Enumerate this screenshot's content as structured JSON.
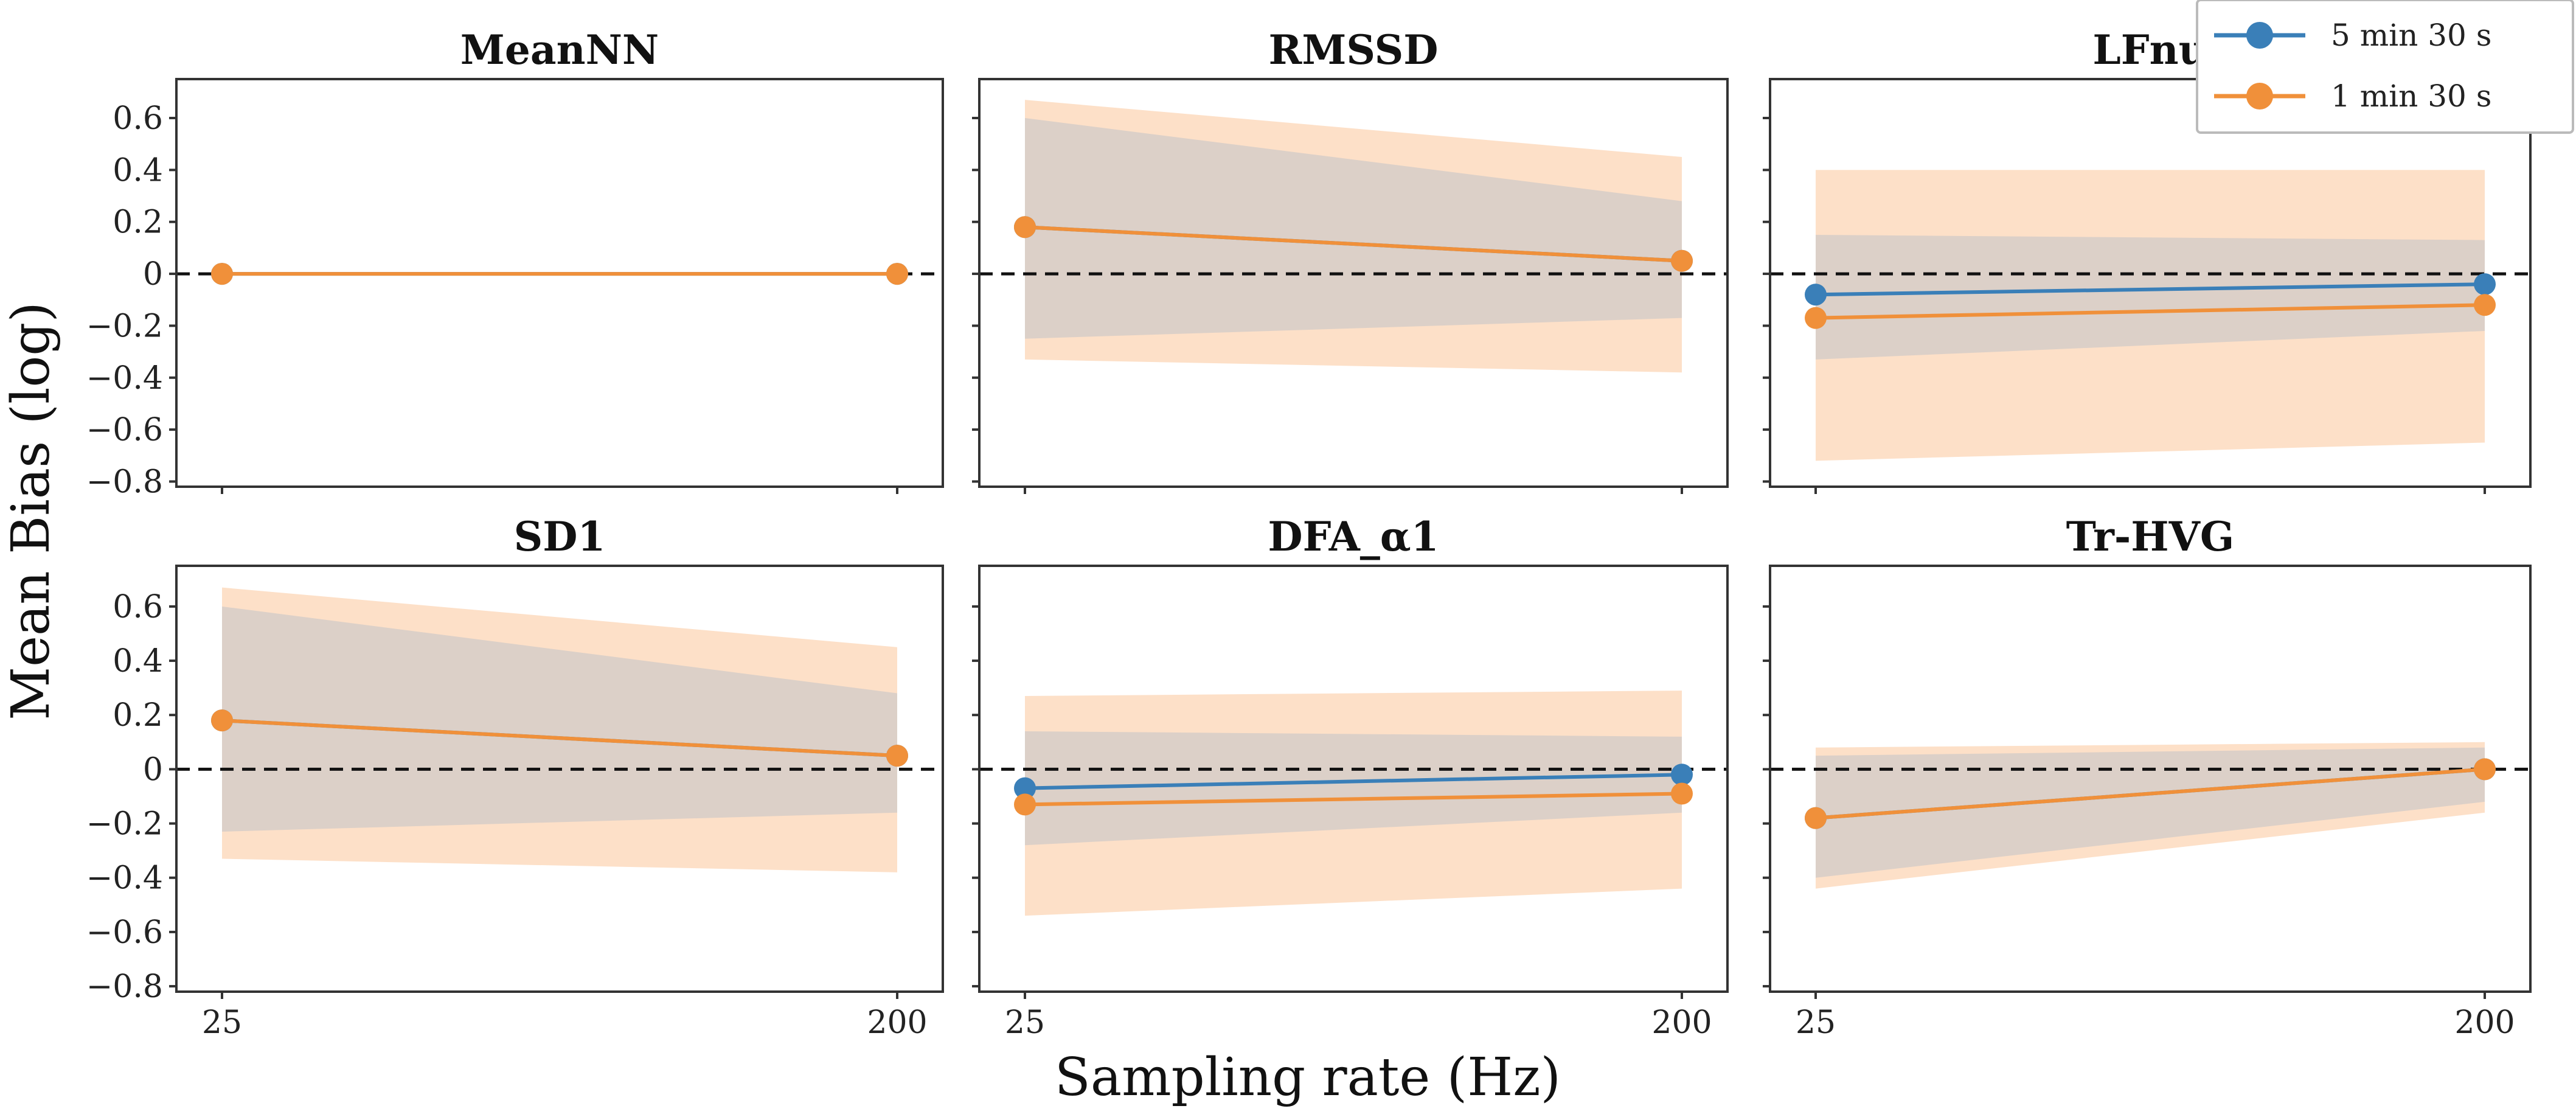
{
  "figure": {
    "xlabel": "Sampling rate (Hz)",
    "ylabel": "Mean Bias (log)",
    "colors": {
      "series_5min": "#3a7fb8",
      "series_1min": "#f0903a",
      "band_1min": "#fde0c8",
      "band_overlap": "#d8cec8",
      "zero_line": "#111111"
    }
  },
  "legend": {
    "entries": [
      "5 min 30 s",
      "1 min 30 s"
    ]
  },
  "chart_data": [
    {
      "type": "line",
      "title": "MeanNN",
      "categories": [
        "25",
        "200"
      ],
      "xlim": [
        25,
        200
      ],
      "yticks": [
        "0.6",
        "0.4",
        "0.2",
        "0",
        "−0.2",
        "−0.4",
        "−0.6",
        "−0.8"
      ],
      "ylim": [
        -0.82,
        0.75
      ],
      "series": [
        {
          "name": "5 min 30 s",
          "values": [
            0.0,
            0.0
          ],
          "band_lower": [
            0.0,
            0.0
          ],
          "band_upper": [
            0.0,
            0.0
          ]
        },
        {
          "name": "1 min 30 s",
          "values": [
            0.0,
            0.0
          ],
          "band_lower": [
            0.0,
            0.0
          ],
          "band_upper": [
            0.0,
            0.0
          ]
        }
      ]
    },
    {
      "type": "line",
      "title": "RMSSD",
      "categories": [
        "25",
        "200"
      ],
      "xlim": [
        25,
        200
      ],
      "yticks": [],
      "ylim": [
        -0.82,
        0.75
      ],
      "series": [
        {
          "name": "5 min 30 s",
          "values": [
            0.18,
            0.05
          ],
          "band_lower": [
            -0.25,
            -0.17
          ],
          "band_upper": [
            0.6,
            0.28
          ]
        },
        {
          "name": "1 min 30 s",
          "values": [
            0.18,
            0.05
          ],
          "band_lower": [
            -0.33,
            -0.38
          ],
          "band_upper": [
            0.67,
            0.45
          ]
        }
      ]
    },
    {
      "type": "line",
      "title": "LFnu",
      "categories": [
        "25",
        "200"
      ],
      "xlim": [
        25,
        200
      ],
      "yticks": [],
      "ylim": [
        -0.82,
        0.75
      ],
      "series": [
        {
          "name": "5 min 30 s",
          "values": [
            -0.08,
            -0.04
          ],
          "band_lower": [
            -0.33,
            -0.22
          ],
          "band_upper": [
            0.15,
            0.13
          ]
        },
        {
          "name": "1 min 30 s",
          "values": [
            -0.17,
            -0.12
          ],
          "band_lower": [
            -0.72,
            -0.65
          ],
          "band_upper": [
            0.4,
            0.4
          ]
        }
      ]
    },
    {
      "type": "line",
      "title": "SD1",
      "categories": [
        "25",
        "200"
      ],
      "xlim": [
        25,
        200
      ],
      "yticks": [
        "0.6",
        "0.4",
        "0.2",
        "0",
        "−0.2",
        "−0.4",
        "−0.6",
        "−0.8"
      ],
      "ylim": [
        -0.82,
        0.75
      ],
      "series": [
        {
          "name": "5 min 30 s",
          "values": [
            0.18,
            0.05
          ],
          "band_lower": [
            -0.23,
            -0.16
          ],
          "band_upper": [
            0.6,
            0.28
          ]
        },
        {
          "name": "1 min 30 s",
          "values": [
            0.18,
            0.05
          ],
          "band_lower": [
            -0.33,
            -0.38
          ],
          "band_upper": [
            0.67,
            0.45
          ]
        }
      ]
    },
    {
      "type": "line",
      "title": "DFA_α1",
      "categories": [
        "25",
        "200"
      ],
      "xlim": [
        25,
        200
      ],
      "yticks": [],
      "ylim": [
        -0.82,
        0.75
      ],
      "series": [
        {
          "name": "5 min 30 s",
          "values": [
            -0.07,
            -0.02
          ],
          "band_lower": [
            -0.28,
            -0.16
          ],
          "band_upper": [
            0.14,
            0.12
          ]
        },
        {
          "name": "1 min 30 s",
          "values": [
            -0.13,
            -0.09
          ],
          "band_lower": [
            -0.54,
            -0.44
          ],
          "band_upper": [
            0.27,
            0.29
          ]
        }
      ]
    },
    {
      "type": "line",
      "title": "Tr-HVG",
      "categories": [
        "25",
        "200"
      ],
      "xlim": [
        25,
        200
      ],
      "yticks": [],
      "ylim": [
        -0.82,
        0.75
      ],
      "series": [
        {
          "name": "5 min 30 s",
          "values": [
            -0.18,
            0.0
          ],
          "band_lower": [
            -0.4,
            -0.12
          ],
          "band_upper": [
            0.05,
            0.08
          ]
        },
        {
          "name": "1 min 30 s",
          "values": [
            -0.18,
            0.0
          ],
          "band_lower": [
            -0.44,
            -0.16
          ],
          "band_upper": [
            0.08,
            0.1
          ]
        }
      ]
    }
  ]
}
